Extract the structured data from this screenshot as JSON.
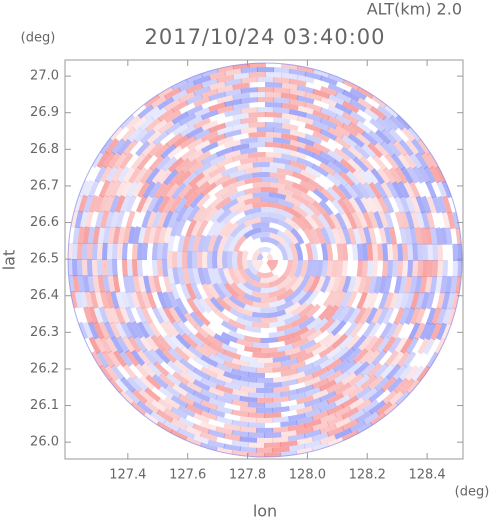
{
  "chart_data": {
    "type": "radar-ppi",
    "title": "2017/10/24 03:40:00",
    "subtitle": "ALT(km) 2.0",
    "x_label": "lon",
    "x_unit": "(deg)",
    "y_label": "lat",
    "y_unit": "(deg)",
    "xlim": [
      127.19,
      128.52
    ],
    "ylim": [
      25.954,
      27.044
    ],
    "xticks": [
      127.4,
      127.6,
      127.8,
      {
        "value": 128.0,
        "label": "128.0"
      },
      128.2,
      128.4
    ],
    "yticks": [
      {
        "value": 26.0,
        "label": "26.0"
      },
      26.1,
      26.2,
      26.3,
      26.4,
      26.5,
      26.6,
      26.7,
      26.8,
      26.9,
      {
        "value": 27.0,
        "label": "27.0"
      }
    ]
  }
}
